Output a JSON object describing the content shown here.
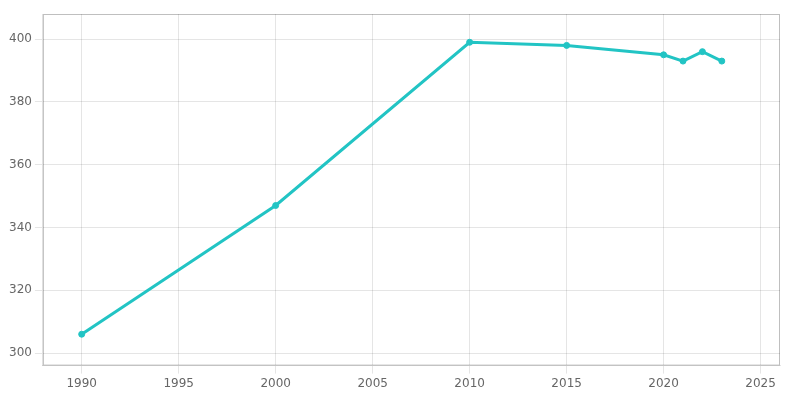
{
  "chart_data": {
    "type": "line",
    "x": [
      1990,
      2000,
      2010,
      2015,
      2020,
      2021,
      2022,
      2023
    ],
    "values": [
      306,
      347,
      399,
      398,
      395,
      393,
      396,
      393
    ],
    "color": "#22c4c4",
    "marker": "circle",
    "xlim": [
      1988,
      2026
    ],
    "xticks": [
      1990,
      1995,
      2000,
      2005,
      2010,
      2015,
      2020,
      2025
    ],
    "ylim": [
      296,
      408
    ],
    "yticks": [
      300,
      320,
      340,
      360,
      380,
      400
    ],
    "grid": true
  }
}
